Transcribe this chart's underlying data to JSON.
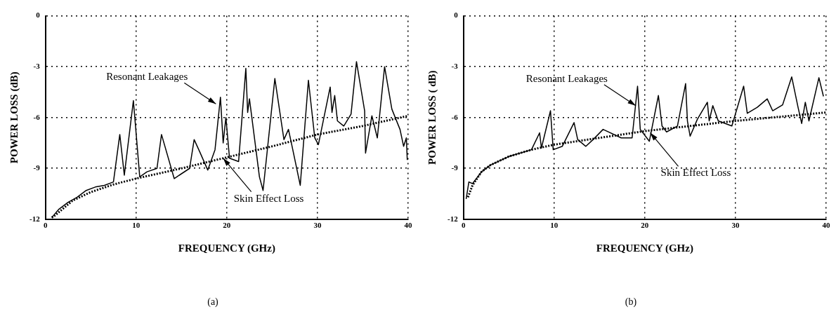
{
  "chart_data": [
    {
      "type": "line",
      "xlabel": "FREQUENCY (GHz)",
      "ylabel": "POWER LOSS (dB)",
      "xlim": [
        0,
        40
      ],
      "xticks": [
        0,
        10,
        20,
        30,
        40
      ],
      "ylim": [
        -12,
        0
      ],
      "yticks": [
        -12,
        -9,
        -6,
        -3,
        0
      ],
      "grid": true,
      "marker": "none",
      "annotations": [
        {
          "text": "Resonant Leakages",
          "x": 18.8,
          "y": -5.2
        },
        {
          "text": "Skin Effect Loss",
          "x": 19.6,
          "y": -8.4
        },
        "(a)"
      ],
      "series": [
        {
          "color": "#000000",
          "line_style": "solid",
          "x": [
            0.7,
            1.5,
            2.5,
            3.5,
            4.5,
            5.5,
            6.5,
            7.5,
            8.2,
            8.7,
            9.7,
            10.4,
            11.2,
            12.3,
            12.8,
            14.2,
            15.9,
            16.4,
            17.0,
            17.9,
            18.7,
            19.3,
            19.6,
            19.9,
            20.3,
            21.3,
            22.1,
            22.3,
            22.5,
            23.6,
            24.0,
            25.3,
            26.3,
            26.8,
            27.2,
            28.1,
            29.0,
            29.7,
            30.1,
            31.4,
            31.6,
            31.9,
            32.2,
            32.9,
            33.7,
            34.3,
            35.2,
            35.3,
            36.0,
            36.6,
            37.4,
            38.2,
            39.1,
            39.5,
            39.8,
            39.9
          ],
          "values": [
            -11.9,
            -11.4,
            -11.0,
            -10.7,
            -10.3,
            -10.1,
            -10.0,
            -9.8,
            -7.0,
            -9.4,
            -5.0,
            -9.5,
            -9.2,
            -9.0,
            -7.0,
            -9.6,
            -9.0,
            -7.3,
            -8.0,
            -9.1,
            -7.9,
            -4.8,
            -7.5,
            -6.0,
            -8.4,
            -8.6,
            -3.1,
            -5.7,
            -4.9,
            -9.5,
            -10.3,
            -3.7,
            -7.3,
            -6.7,
            -7.7,
            -10.0,
            -3.8,
            -7.2,
            -7.6,
            -4.2,
            -5.7,
            -4.7,
            -6.2,
            -6.5,
            -5.8,
            -2.7,
            -5.6,
            -8.1,
            -5.9,
            -7.2,
            -3.0,
            -5.5,
            -6.7,
            -7.7,
            -7.2,
            -8.5
          ]
        },
        {
          "color": "#000000",
          "line_style": "dotted",
          "x": [
            0.7,
            1,
            3,
            5,
            7.5,
            10,
            15,
            20,
            25,
            30,
            35,
            40
          ],
          "values": [
            -11.9,
            -11.8,
            -10.9,
            -10.4,
            -9.95,
            -9.6,
            -9.0,
            -8.35,
            -7.7,
            -7.0,
            -6.5,
            -5.9
          ]
        }
      ]
    },
    {
      "type": "line",
      "xlabel": "FREQUENCY (GHz)",
      "ylabel": "POWER LOSS ( dB)",
      "xlim": [
        0,
        40
      ],
      "xticks": [
        0,
        10,
        20,
        30,
        40
      ],
      "ylim": [
        -12,
        0
      ],
      "yticks": [
        -12,
        -9,
        -6,
        -3,
        0
      ],
      "grid": true,
      "marker": "none",
      "annotations": [
        {
          "text": "Resonant Leakages",
          "x": 19.0,
          "y": -5.3
        },
        {
          "text": "Skin Effect Loss",
          "x": 20.6,
          "y": -6.9
        },
        "(b)"
      ],
      "series": [
        {
          "color": "#000000",
          "line_style": "solid",
          "x": [
            0.3,
            0.6,
            1,
            2,
            3,
            5,
            7.5,
            8.4,
            8.6,
            9.6,
            9.9,
            10.9,
            12.2,
            12.6,
            13.5,
            14.3,
            15.4,
            17.4,
            18.6,
            19.2,
            19.5,
            20.5,
            21.5,
            21.9,
            22.4,
            23.6,
            24.5,
            24.7,
            25.0,
            25.8,
            26.9,
            27.1,
            27.5,
            28.1,
            29.6,
            30.9,
            31.3,
            32.4,
            33.5,
            34.1,
            35.2,
            36.2,
            36.9,
            37.3,
            37.7,
            38.1,
            39.2,
            39.7
          ],
          "values": [
            -10.8,
            -9.8,
            -9.9,
            -9.2,
            -8.8,
            -8.3,
            -7.9,
            -6.9,
            -7.8,
            -5.6,
            -7.9,
            -7.7,
            -6.3,
            -7.3,
            -7.7,
            -7.3,
            -6.7,
            -7.2,
            -7.2,
            -4.15,
            -6.7,
            -7.4,
            -4.7,
            -6.5,
            -6.85,
            -6.5,
            -4.0,
            -6.2,
            -7.1,
            -6.1,
            -5.1,
            -6.2,
            -5.3,
            -6.2,
            -6.5,
            -4.15,
            -5.75,
            -5.4,
            -4.9,
            -5.6,
            -5.25,
            -3.6,
            -5.4,
            -6.35,
            -5.1,
            -6.2,
            -3.65,
            -4.75
          ]
        },
        {
          "color": "#000000",
          "line_style": "dotted",
          "x": [
            0.5,
            1,
            2,
            3,
            5,
            7.5,
            10,
            15,
            20,
            25,
            30,
            35,
            40
          ],
          "values": [
            -10.7,
            -10.0,
            -9.2,
            -8.8,
            -8.3,
            -7.9,
            -7.6,
            -7.2,
            -6.8,
            -6.5,
            -6.2,
            -5.95,
            -5.7
          ]
        }
      ]
    }
  ]
}
